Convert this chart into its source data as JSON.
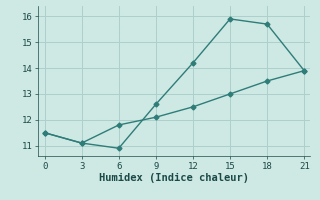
{
  "line1_x": [
    0,
    3,
    6,
    9,
    12,
    15,
    18,
    21
  ],
  "line1_y": [
    11.5,
    11.1,
    10.9,
    12.6,
    14.2,
    15.9,
    15.7,
    13.9
  ],
  "line2_x": [
    0,
    3,
    6,
    9,
    12,
    15,
    18,
    21
  ],
  "line2_y": [
    11.5,
    11.1,
    11.8,
    12.1,
    12.5,
    13.0,
    13.5,
    13.9
  ],
  "line_color": "#2e7d78",
  "bg_color": "#cee8e4",
  "grid_color": "#aed0cc",
  "xlabel": "Humidex (Indice chaleur)",
  "xlim": [
    -0.5,
    21.5
  ],
  "ylim": [
    10.6,
    16.4
  ],
  "xticks": [
    0,
    3,
    6,
    9,
    12,
    15,
    18,
    21
  ],
  "yticks": [
    11,
    12,
    13,
    14,
    15,
    16
  ],
  "font_color": "#1a4a47",
  "marker": "D",
  "markersize": 2.5,
  "linewidth": 1.0,
  "tick_fontsize": 6.5,
  "xlabel_fontsize": 7.5
}
